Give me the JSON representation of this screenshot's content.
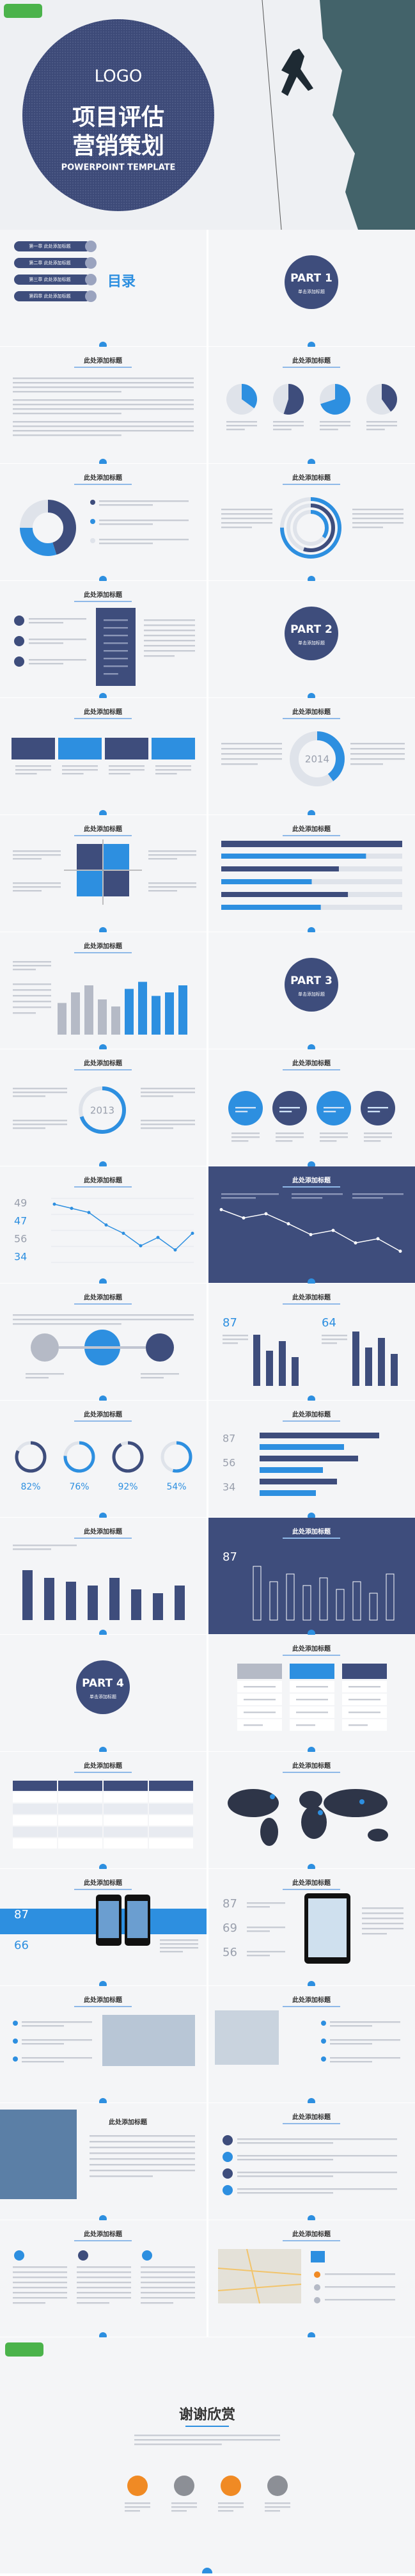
{
  "cover": {
    "logo": "LOGO",
    "title_line1": "项目评估",
    "title_line2": "营销策划",
    "subtitle": "POWERPOINT TEMPLATE"
  },
  "slides": [
    {
      "items": [
        "第一章  此处添加标题",
        "第二章  此处添加标题",
        "第三章  此处添加标题",
        "第四章  此处添加标题"
      ],
      "heading": "目录"
    },
    {
      "part": "PART 1",
      "subtitle": "单击添加标题"
    },
    {
      "title": "此处添加标题"
    },
    {
      "title": "此处添加标题",
      "values": [
        35,
        55,
        70,
        40
      ]
    },
    {
      "title": "此处添加标题",
      "values": [
        45,
        30,
        25
      ]
    },
    {
      "title": "此处添加标题",
      "values": [
        75,
        55,
        35
      ]
    },
    {
      "title": "此处添加标题"
    },
    {
      "part": "PART 2",
      "subtitle": "单击添加标题"
    },
    {
      "title": "此处添加标题"
    },
    {
      "title": "此处添加标题",
      "center": "2014",
      "value": 40
    },
    {
      "title": "此处添加标题"
    },
    {
      "title": "此处添加标题",
      "values": [
        80,
        65,
        50,
        70,
        55
      ]
    },
    {
      "title": "此处添加标题",
      "values": [
        45,
        60,
        70,
        50,
        40,
        65,
        75,
        55,
        60,
        70
      ]
    },
    {
      "part": "PART 3",
      "subtitle": "单击添加标题"
    },
    {
      "title": "此处添加标题",
      "center": "2013",
      "value": 70
    },
    {
      "title": "此处添加标题"
    },
    {
      "title": "此处添加标题",
      "figures": [
        49,
        47,
        56,
        34
      ],
      "values": [
        70,
        65,
        60,
        45,
        35,
        20,
        30,
        15,
        35
      ]
    },
    {
      "title": "此处添加标题",
      "values": [
        75,
        65,
        70,
        58,
        45,
        50,
        35,
        40,
        25
      ]
    },
    {
      "title": "此处添加标题"
    },
    {
      "title": "此处添加标题",
      "figures": [
        87,
        64
      ],
      "series": [
        [
          80,
          55,
          70,
          45
        ],
        [
          85,
          60,
          75,
          50
        ]
      ]
    },
    {
      "title": "此处添加标题",
      "values": [
        82,
        76,
        92,
        54
      ],
      "value_labels": [
        "82%",
        "76%",
        "92%",
        "54%"
      ]
    },
    {
      "title": "此处添加标题",
      "figures": [
        87,
        56,
        34
      ],
      "values": [
        85,
        60,
        70,
        45,
        55,
        40
      ]
    },
    {
      "title": "此处添加标题",
      "values": [
        65,
        55,
        50,
        45,
        55,
        40,
        35,
        45
      ]
    },
    {
      "title": "此处添加标题",
      "figures": [
        87
      ],
      "values": [
        70,
        50,
        60,
        45,
        55,
        40,
        50,
        35,
        60
      ]
    },
    {
      "part": "PART 4",
      "subtitle": "单击添加标题"
    },
    {
      "title": "此处添加标题"
    },
    {
      "title": "此处添加标题"
    },
    {
      "title": "此处添加标题"
    },
    {
      "title": "此处添加标题",
      "figures": [
        87,
        66
      ]
    },
    {
      "title": "此处添加标题",
      "figures": [
        87,
        69,
        56
      ]
    },
    {
      "title": "此处添加标题"
    },
    {
      "title": "此处添加标题"
    },
    {
      "title": "此处添加标题"
    },
    {
      "title": "此处添加标题"
    },
    {
      "title": "此处添加标题"
    },
    {
      "title": "此处添加标题"
    }
  ],
  "ending": {
    "title": "谢谢欣赏"
  }
}
